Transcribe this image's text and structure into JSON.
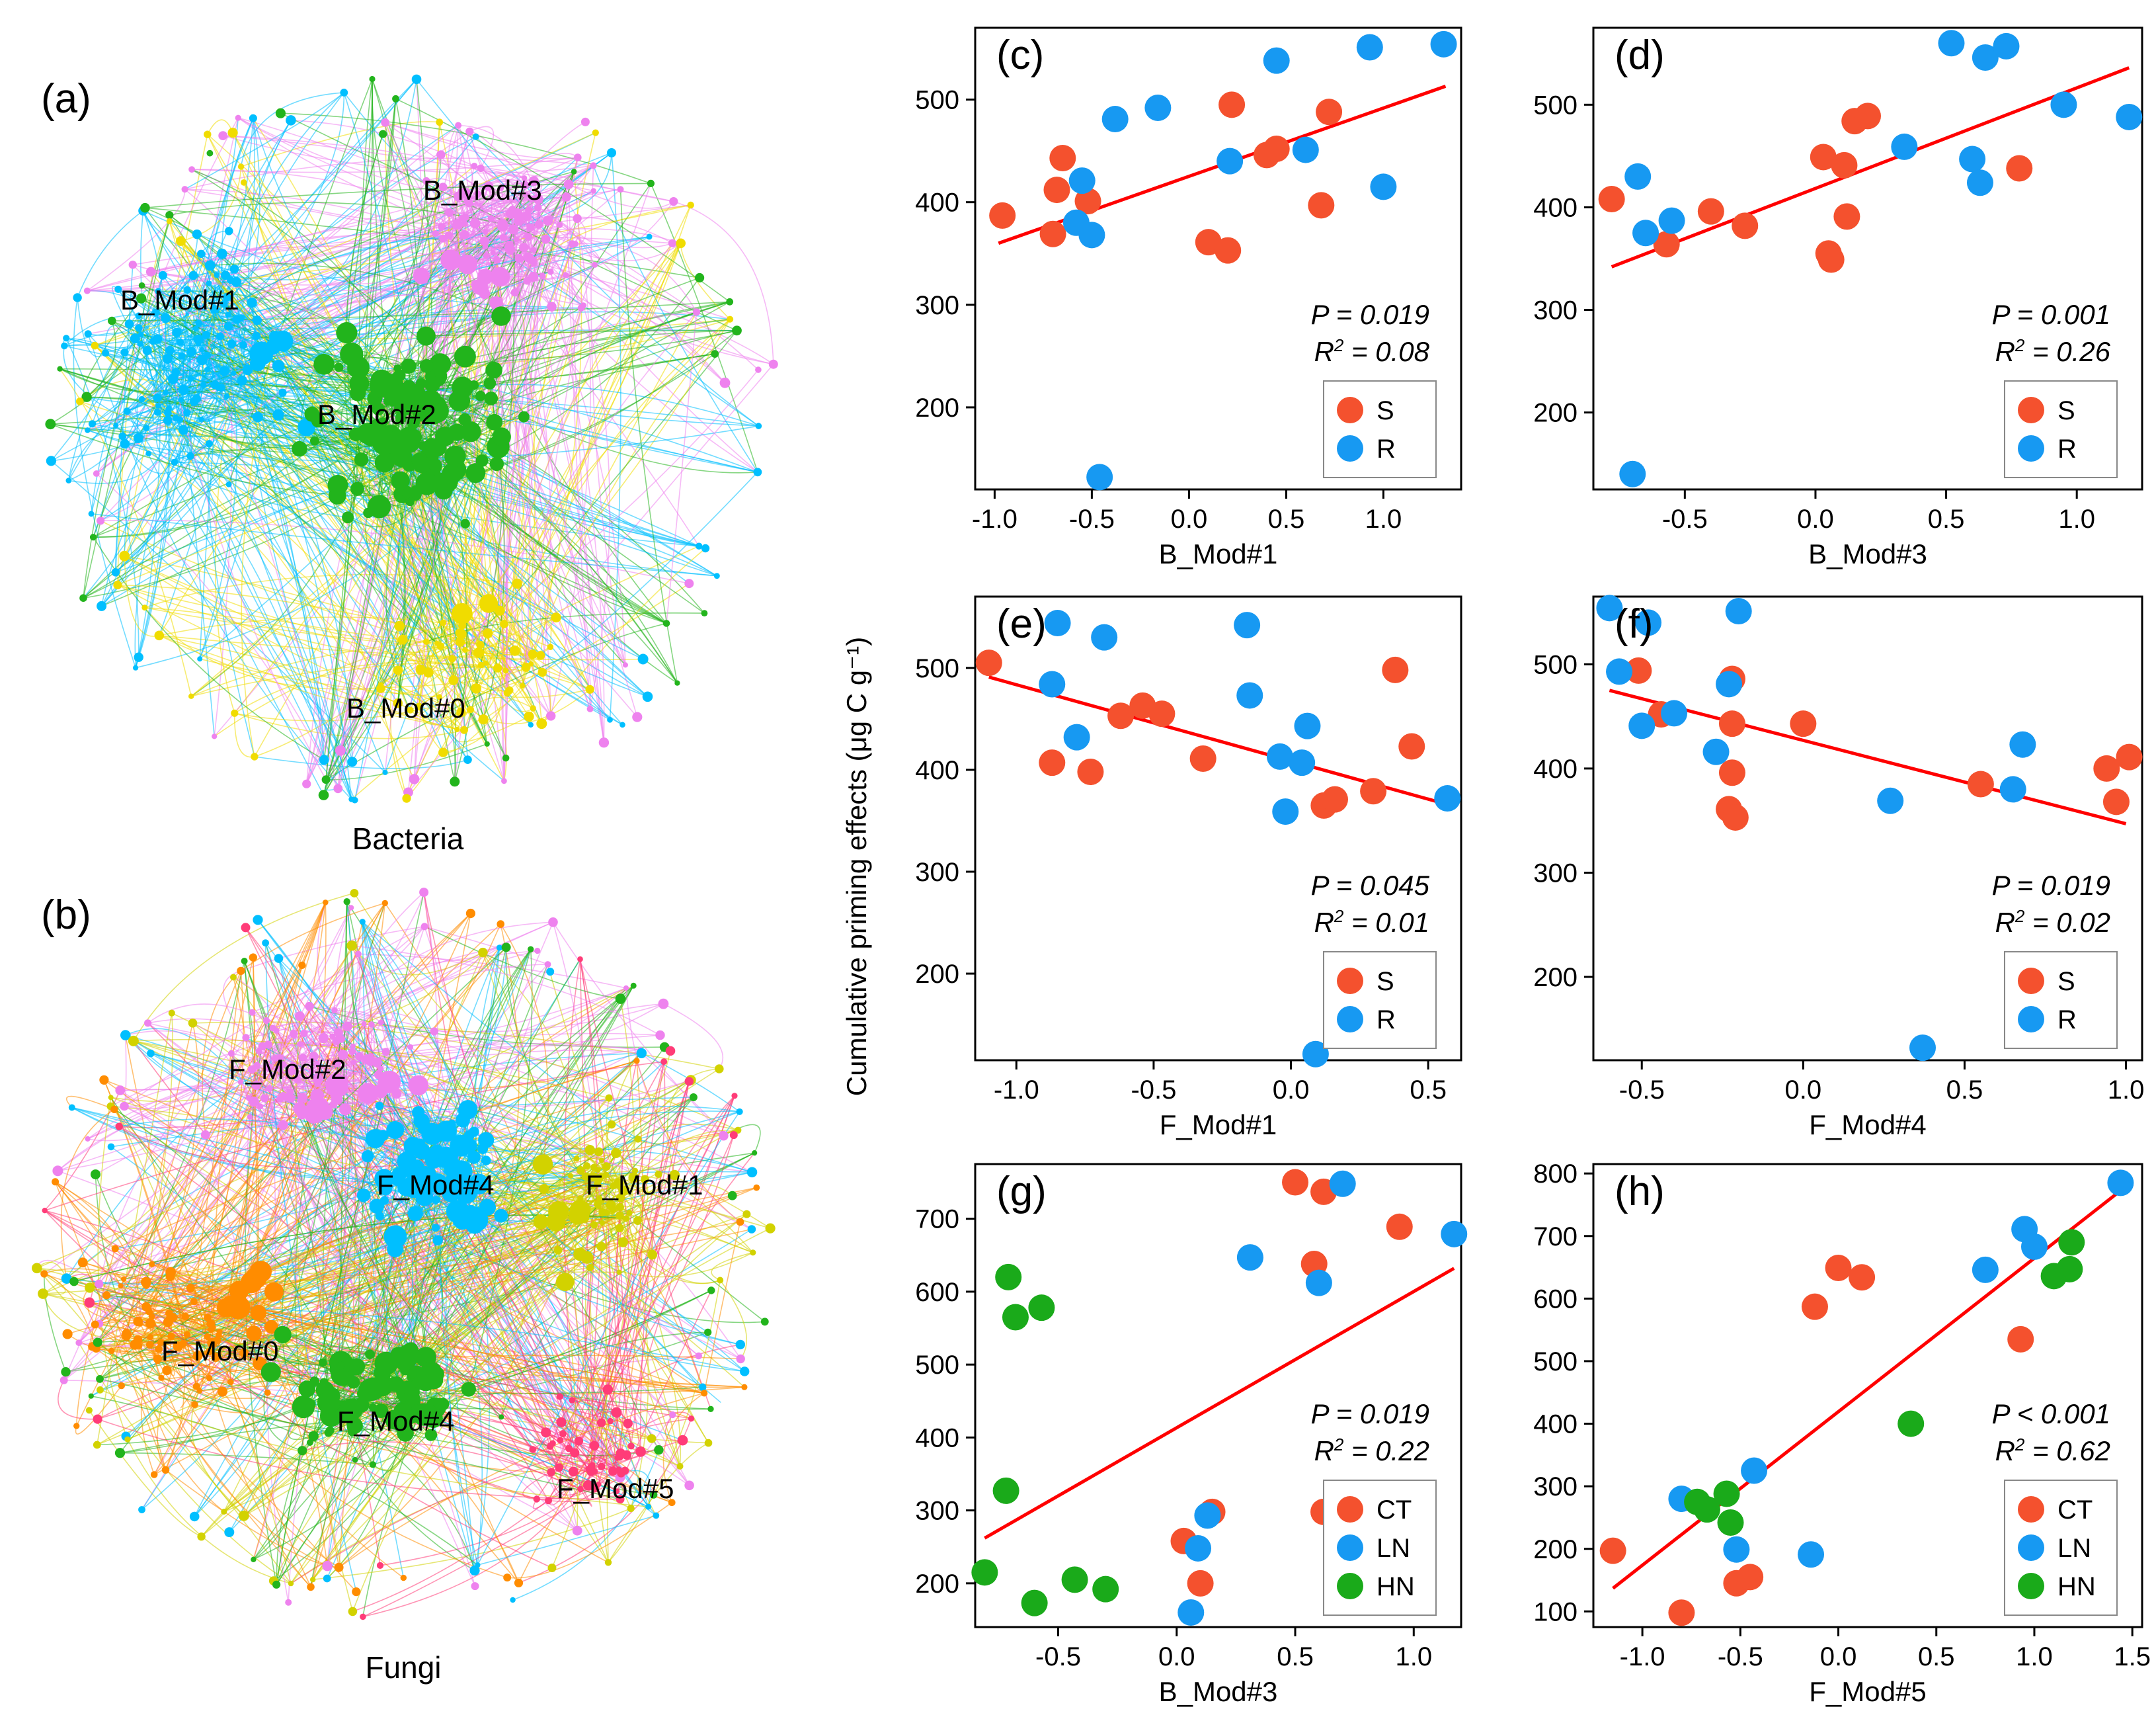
{
  "networks": [
    {
      "panel": "(a)",
      "title": "Bacteria",
      "modules": [
        {
          "name": "B_Mod#3",
          "color": "#ee82ee"
        },
        {
          "name": "B_Mod#1",
          "color": "#00bfff"
        },
        {
          "name": "B_Mod#2",
          "color": "#22b41c"
        },
        {
          "name": "B_Mod#0",
          "color": "#f0dc00"
        }
      ]
    },
    {
      "panel": "(b)",
      "title": "Fungi",
      "modules": [
        {
          "name": "F_Mod#2",
          "color": "#ee82ee"
        },
        {
          "name": "F_Mod#4",
          "color": "#00bfff"
        },
        {
          "name": "F_Mod#1",
          "color": "#d2d200"
        },
        {
          "name": "F_Mod#0",
          "color": "#ff8c00"
        },
        {
          "name": "F_Mod#4",
          "color": "#22b41c"
        },
        {
          "name": "F_Mod#5",
          "color": "#ff3c78"
        }
      ]
    }
  ],
  "shared_ylabel": "Cumulative priming effects (μg C g⁻¹)",
  "colors": {
    "S": "#f4512e",
    "R": "#1799f2",
    "CT": "#f4512e",
    "LN": "#1799f2",
    "HN": "#1aaa1a",
    "fit": "#ff0000"
  },
  "chart_data": [
    {
      "panel": "(c)",
      "type": "scatter",
      "xlabel": "B_Mod#1",
      "xlim": [
        -1.1,
        1.4
      ],
      "ylim": [
        120,
        570
      ],
      "xticks": [
        "-1.0",
        "-0.5",
        "0.0",
        "0.5",
        "1.0"
      ],
      "xtick_values": [
        -1.0,
        -0.5,
        0.0,
        0.5,
        1.0
      ],
      "yticks": [
        "200",
        "300",
        "400",
        "500"
      ],
      "ytick_values": [
        200,
        300,
        400,
        500
      ],
      "p_text": "P = 0.019",
      "r2_prefix": "R",
      "r2_suffix": " = 0.08",
      "fit": [
        [
          -0.98,
          360
        ],
        [
          1.32,
          513
        ]
      ],
      "legend": [
        "S",
        "R"
      ],
      "series": [
        {
          "name": "S",
          "x": [
            -0.96,
            -0.65,
            -0.68,
            -0.52,
            -0.7,
            0.1,
            0.2,
            0.22,
            0.4,
            0.45,
            0.68,
            0.72
          ],
          "y": [
            387,
            443,
            412,
            401,
            369,
            361,
            353,
            495,
            446,
            452,
            397,
            488
          ]
        },
        {
          "name": "R",
          "x": [
            -0.55,
            -0.5,
            -0.58,
            -0.38,
            -0.16,
            0.21,
            0.45,
            0.6,
            0.93,
            1.0,
            1.31,
            -0.46
          ],
          "y": [
            421,
            368,
            380,
            481,
            492,
            440,
            538,
            451,
            551,
            415,
            554,
            132
          ]
        }
      ]
    },
    {
      "panel": "(d)",
      "type": "scatter",
      "xlabel": "B_Mod#3",
      "xlim": [
        -0.85,
        1.25
      ],
      "ylim": [
        125,
        575
      ],
      "xticks": [
        "-0.5",
        "0.0",
        "0.5",
        "1.0"
      ],
      "xtick_values": [
        -0.5,
        0.0,
        0.5,
        1.0
      ],
      "yticks": [
        "200",
        "300",
        "400",
        "500"
      ],
      "ytick_values": [
        200,
        300,
        400,
        500
      ],
      "p_text": "P = 0.001",
      "r2_prefix": "R",
      "r2_suffix": " = 0.26",
      "fit": [
        [
          -0.78,
          342
        ],
        [
          1.2,
          536
        ]
      ],
      "legend": [
        "S",
        "R"
      ],
      "series": [
        {
          "name": "S",
          "x": [
            -0.78,
            -0.57,
            -0.4,
            -0.27,
            0.03,
            0.05,
            0.06,
            0.11,
            0.12,
            0.15,
            0.2,
            0.78
          ],
          "y": [
            408,
            364,
            396,
            382,
            449,
            355,
            349,
            441,
            391,
            484,
            489,
            438
          ]
        },
        {
          "name": "R",
          "x": [
            -0.68,
            -0.65,
            -0.55,
            0.34,
            0.52,
            0.6,
            0.63,
            0.65,
            0.73,
            0.95,
            1.2,
            -0.7
          ],
          "y": [
            430,
            375,
            387,
            459,
            560,
            447,
            424,
            546,
            557,
            500,
            488,
            140
          ]
        }
      ]
    },
    {
      "panel": "(e)",
      "type": "scatter",
      "xlabel": "F_Mod#1",
      "xlim": [
        -1.15,
        0.62
      ],
      "ylim": [
        115,
        570
      ],
      "xticks": [
        "-1.0",
        "-0.5",
        "0.0",
        "0.5"
      ],
      "xtick_values": [
        -1.0,
        -0.5,
        0.0,
        0.5
      ],
      "yticks": [
        "200",
        "300",
        "400",
        "500"
      ],
      "ytick_values": [
        200,
        300,
        400,
        500
      ],
      "p_text": "P = 0.045",
      "r2_prefix": "R",
      "r2_suffix": " = 0.01",
      "fit": [
        [
          -1.1,
          491
        ],
        [
          0.57,
          366
        ]
      ],
      "legend": [
        "S",
        "R"
      ],
      "series": [
        {
          "name": "S",
          "x": [
            -1.1,
            -0.87,
            -0.73,
            -0.62,
            -0.54,
            -0.47,
            -0.32,
            0.12,
            0.16,
            0.3,
            0.38,
            0.44
          ],
          "y": [
            505,
            407,
            398,
            453,
            463,
            455,
            411,
            365,
            371,
            379,
            498,
            423
          ]
        },
        {
          "name": "R",
          "x": [
            -0.87,
            -0.85,
            -0.78,
            -0.68,
            -0.16,
            -0.15,
            -0.04,
            -0.02,
            0.04,
            0.06,
            0.09,
            0.57
          ],
          "y": [
            484,
            544,
            432,
            530,
            542,
            473,
            413,
            359,
            407,
            443,
            121,
            372
          ]
        }
      ]
    },
    {
      "panel": "(f)",
      "type": "scatter",
      "xlabel": "F_Mod#4",
      "xlim": [
        -0.65,
        1.05
      ],
      "ylim": [
        120,
        565
      ],
      "xticks": [
        "-0.5",
        "0.0",
        "0.5",
        "1.0"
      ],
      "xtick_values": [
        -0.5,
        0.0,
        0.5,
        1.0
      ],
      "yticks": [
        "200",
        "300",
        "400",
        "500"
      ],
      "ytick_values": [
        200,
        300,
        400,
        500
      ],
      "p_text": "P = 0.019",
      "r2_prefix": "R",
      "r2_suffix": " = 0.02",
      "fit": [
        [
          -0.6,
          475
        ],
        [
          1.0,
          347
        ]
      ],
      "legend": [
        "S",
        "R"
      ],
      "series": [
        {
          "name": "S",
          "x": [
            -0.51,
            -0.44,
            -0.22,
            -0.22,
            -0.22,
            -0.23,
            -0.21,
            0.0,
            0.55,
            0.94,
            0.97,
            1.01
          ],
          "y": [
            494,
            452,
            486,
            443,
            396,
            361,
            353,
            443,
            385,
            400,
            368,
            411
          ]
        },
        {
          "name": "R",
          "x": [
            -0.6,
            -0.57,
            -0.5,
            -0.48,
            -0.4,
            -0.27,
            -0.23,
            -0.2,
            0.27,
            0.37,
            0.65,
            0.68
          ],
          "y": [
            554,
            493,
            441,
            540,
            453,
            416,
            481,
            551,
            369,
            132,
            380,
            423
          ]
        }
      ]
    },
    {
      "panel": "(g)",
      "type": "scatter",
      "xlabel": "B_Mod#3",
      "xlim": [
        -0.85,
        1.2
      ],
      "ylim": [
        140,
        775
      ],
      "xticks": [
        "-0.5",
        "0.0",
        "0.5",
        "1.0"
      ],
      "xtick_values": [
        -0.5,
        0.0,
        0.5,
        1.0
      ],
      "yticks": [
        "200",
        "300",
        "400",
        "500",
        "600",
        "700"
      ],
      "ytick_values": [
        200,
        300,
        400,
        500,
        600,
        700
      ],
      "p_text": "P = 0.019",
      "r2_prefix": "R",
      "r2_suffix": " = 0.22",
      "fit": [
        [
          -0.81,
          262
        ],
        [
          1.17,
          632
        ]
      ],
      "legend": [
        "CT",
        "LN",
        "HN"
      ],
      "series": [
        {
          "name": "CT",
          "x": [
            0.03,
            0.1,
            0.15,
            0.5,
            0.58,
            0.62,
            0.62,
            0.94
          ],
          "y": [
            258,
            200,
            298,
            750,
            638,
            737,
            298,
            689
          ]
        },
        {
          "name": "LN",
          "x": [
            0.06,
            0.09,
            0.13,
            0.31,
            0.6,
            0.7,
            1.17
          ],
          "y": [
            160,
            248,
            293,
            647,
            612,
            748,
            679
          ]
        },
        {
          "name": "HN",
          "x": [
            -0.81,
            -0.72,
            -0.71,
            -0.68,
            -0.6,
            -0.57,
            -0.43,
            -0.3
          ],
          "y": [
            215,
            327,
            620,
            565,
            173,
            578,
            205,
            192
          ]
        }
      ]
    },
    {
      "panel": "(h)",
      "type": "scatter",
      "xlabel": "F_Mod#5",
      "xlim": [
        -1.25,
        1.55
      ],
      "ylim": [
        75,
        815
      ],
      "xticks": [
        "-1.0",
        "-0.5",
        "0.0",
        "0.5",
        "1.0",
        "1.5"
      ],
      "xtick_values": [
        -1.0,
        -0.5,
        0.0,
        0.5,
        1.0,
        1.5
      ],
      "yticks": [
        "100",
        "200",
        "300",
        "400",
        "500",
        "600",
        "700",
        "800"
      ],
      "ytick_values": [
        100,
        200,
        300,
        400,
        500,
        600,
        700,
        800
      ],
      "p_text": "P < 0.001",
      "r2_prefix": "R",
      "r2_suffix": " = 0.62",
      "fit": [
        [
          -1.15,
          137
        ],
        [
          1.45,
          775
        ]
      ],
      "legend": [
        "CT",
        "LN",
        "HN"
      ],
      "series": [
        {
          "name": "CT",
          "x": [
            -1.15,
            -0.8,
            -0.52,
            -0.45,
            -0.12,
            0.0,
            0.12,
            0.93
          ],
          "y": [
            197,
            98,
            145,
            155,
            587,
            649,
            634,
            535
          ]
        },
        {
          "name": "LN",
          "x": [
            -0.8,
            -0.52,
            -0.43,
            -0.14,
            0.75,
            0.95,
            1.0,
            1.44
          ],
          "y": [
            280,
            199,
            325,
            191,
            646,
            711,
            683,
            785
          ]
        },
        {
          "name": "HN",
          "x": [
            -0.72,
            -0.67,
            -0.57,
            -0.55,
            0.37,
            1.1,
            1.18,
            1.19
          ],
          "y": [
            275,
            263,
            288,
            242,
            400,
            636,
            647,
            690
          ]
        }
      ]
    }
  ]
}
